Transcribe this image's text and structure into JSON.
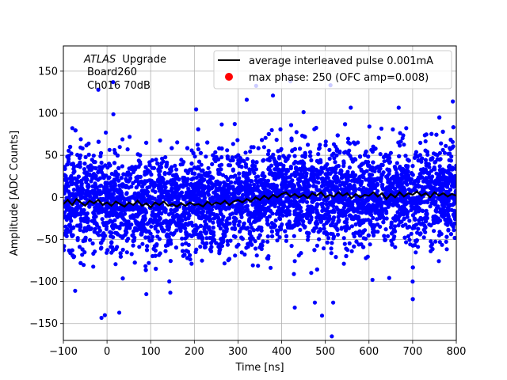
{
  "chart_data": {
    "type": "scatter",
    "xlabel": "Time [ns]",
    "ylabel": "Amplitude [ADC Counts]",
    "xlim": [
      -100,
      800
    ],
    "ylim": [
      -170,
      180
    ],
    "xticks": [
      -100,
      0,
      100,
      200,
      300,
      400,
      500,
      600,
      700,
      800
    ],
    "yticks": [
      -150,
      -100,
      -50,
      0,
      50,
      100,
      150
    ],
    "grid": true,
    "legend_position": "top-right",
    "annotation": {
      "atlas": "ATLAS",
      "upgrade": "Upgrade",
      "line2": "Board260",
      "line3": "Ch016 70dB"
    },
    "series": [
      {
        "name": "average interleaved pulse 0.001mA",
        "kind": "line",
        "color": "#000000",
        "x": [
          -100,
          -90,
          -80,
          -70,
          -60,
          -50,
          -40,
          -30,
          -20,
          -10,
          0,
          10,
          20,
          30,
          40,
          50,
          60,
          70,
          80,
          90,
          100,
          110,
          120,
          130,
          140,
          150,
          160,
          170,
          180,
          190,
          200,
          210,
          220,
          230,
          240,
          250,
          260,
          270,
          280,
          290,
          300,
          310,
          320,
          330,
          340,
          350,
          360,
          370,
          380,
          390,
          400,
          410,
          420,
          430,
          440,
          450,
          460,
          470,
          480,
          490,
          500,
          510,
          520,
          530,
          540,
          550,
          560,
          570,
          580,
          590,
          600,
          610,
          620,
          630,
          640,
          650,
          660,
          670,
          680,
          690,
          700,
          710,
          720,
          730,
          740,
          750,
          760,
          770,
          780,
          790,
          800
        ],
        "y": [
          -8,
          -3,
          -9,
          -2,
          -6,
          -10,
          -4,
          -7,
          -3,
          -9,
          -6,
          -10,
          -5,
          -8,
          -11,
          -6,
          -9,
          -4,
          -10,
          -7,
          -12,
          -6,
          -9,
          -5,
          -10,
          -8,
          -11,
          -7,
          -10,
          -6,
          -9,
          -8,
          -11,
          -5,
          -9,
          -6,
          -8,
          -4,
          -9,
          -5,
          -3,
          -6,
          -2,
          -5,
          0,
          -3,
          2,
          -2,
          3,
          0,
          4,
          6,
          1,
          4,
          0,
          3,
          -1,
          5,
          2,
          6,
          0,
          3,
          1,
          6,
          2,
          5,
          -1,
          4,
          0,
          3,
          2,
          6,
          1,
          5,
          -2,
          4,
          0,
          6,
          1,
          5,
          3,
          7,
          2,
          5,
          0,
          6,
          2,
          5,
          1,
          4,
          2
        ]
      },
      {
        "name": "max phase: 250 (OFC amp=0.008)",
        "kind": "scatter",
        "color": "#0000ff",
        "band_core": [
          -45,
          45
        ],
        "outliers": [
          {
            "x": -5,
            "y": -140
          },
          {
            "x": 28,
            "y": -137
          },
          {
            "x": 90,
            "y": -115
          },
          {
            "x": -20,
            "y": 128
          },
          {
            "x": 14,
            "y": 137
          },
          {
            "x": 420,
            "y": 138
          },
          {
            "x": 430,
            "y": -131
          },
          {
            "x": 476,
            "y": -125
          },
          {
            "x": 518,
            "y": -125
          },
          {
            "x": 792,
            "y": 114
          },
          {
            "x": 380,
            "y": 121
          },
          {
            "x": -73,
            "y": -111
          },
          {
            "x": 608,
            "y": -98
          },
          {
            "x": 700,
            "y": -100
          },
          {
            "x": 320,
            "y": 116
          }
        ]
      }
    ]
  }
}
